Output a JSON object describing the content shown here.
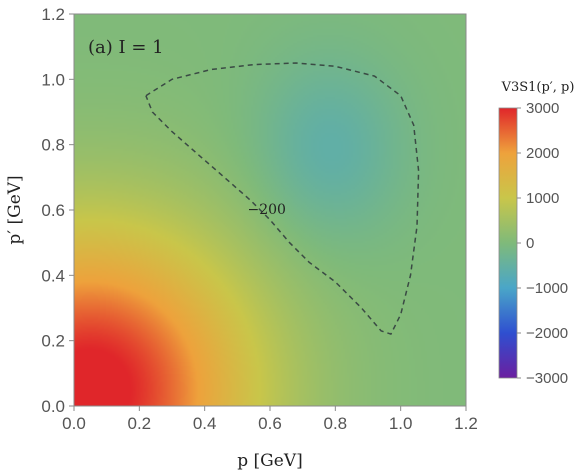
{
  "chart_data": {
    "type": "heatmap",
    "annotation": "(a) I = 1",
    "xlabel": "p [GeV]",
    "ylabel": "p′ [GeV]",
    "xlim": [
      0.0,
      1.2
    ],
    "ylim": [
      0.0,
      1.2
    ],
    "xticks": [
      "0.0",
      "0.2",
      "0.4",
      "0.6",
      "0.8",
      "1.0",
      "1.2"
    ],
    "yticks": [
      "0.0",
      "0.2",
      "0.4",
      "0.6",
      "0.8",
      "1.0",
      "1.2"
    ],
    "colorbar": {
      "title": "V3S1(p′, p)",
      "range": [
        -3000,
        3000
      ],
      "ticks": [
        "3000",
        "2000",
        "1000",
        "0",
        "−1000",
        "−2000",
        "−3000"
      ],
      "colors": [
        "#6b1fa0",
        "#2f4fd0",
        "#4aa6c8",
        "#7fba7a",
        "#c9c64a",
        "#eea23c",
        "#e0262a"
      ]
    },
    "field": {
      "max_at": [
        0.05,
        0.05
      ],
      "max_value": 3200,
      "min_at": [
        0.78,
        0.78
      ],
      "min_value": -600,
      "background_value": 0
    },
    "contours": [
      {
        "label": "−200",
        "label_at": [
          0.59,
          0.6
        ],
        "points": [
          [
            0.22,
            0.95
          ],
          [
            0.3,
            1.0
          ],
          [
            0.42,
            1.03
          ],
          [
            0.55,
            1.045
          ],
          [
            0.68,
            1.05
          ],
          [
            0.8,
            1.04
          ],
          [
            0.92,
            1.01
          ],
          [
            1.0,
            0.95
          ],
          [
            1.04,
            0.86
          ],
          [
            1.055,
            0.72
          ],
          [
            1.05,
            0.55
          ],
          [
            1.03,
            0.4
          ],
          [
            1.0,
            0.28
          ],
          [
            0.97,
            0.22
          ],
          [
            0.94,
            0.23
          ],
          [
            0.88,
            0.3
          ],
          [
            0.8,
            0.38
          ],
          [
            0.72,
            0.44
          ],
          [
            0.66,
            0.5
          ],
          [
            0.6,
            0.57
          ],
          [
            0.54,
            0.63
          ],
          [
            0.46,
            0.7
          ],
          [
            0.38,
            0.77
          ],
          [
            0.3,
            0.84
          ],
          [
            0.24,
            0.9
          ],
          [
            0.22,
            0.95
          ]
        ]
      }
    ]
  }
}
